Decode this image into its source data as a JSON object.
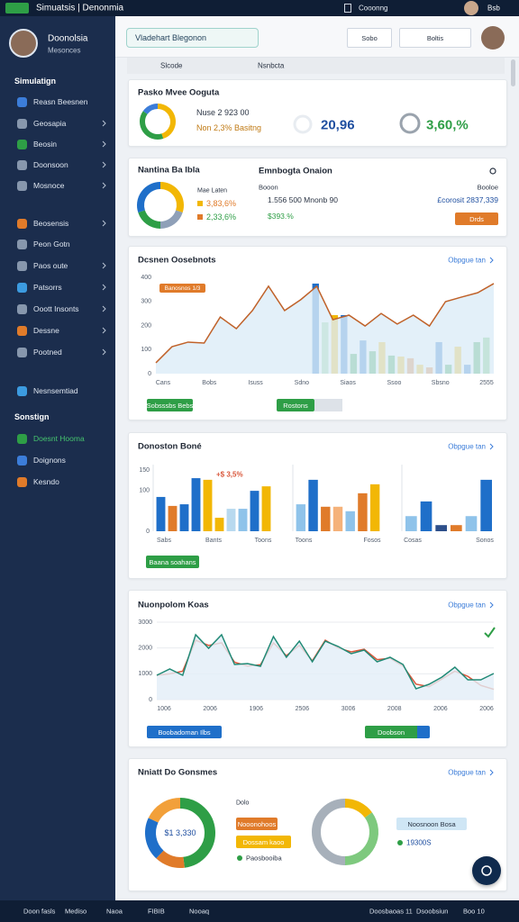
{
  "topbar": {
    "title": "Simuatsis | Denonmia",
    "status": "Cooonng",
    "user": "Bsb"
  },
  "sidebar": {
    "profile": {
      "name": "Doonolsia",
      "role": "Mesonces"
    },
    "section1": "Simulatign",
    "menu1": [
      {
        "label": "Reasn Beesnen",
        "icon_color": "#3c7dd9",
        "arrow": false
      },
      {
        "label": "Geosapia",
        "icon_color": "#8797ad",
        "arrow": true
      },
      {
        "label": "Beosin",
        "icon_color": "#2e9e46",
        "arrow": true
      },
      {
        "label": "Doonsoon",
        "icon_color": "#8797ad",
        "arrow": true
      },
      {
        "label": "Mosnoce",
        "icon_color": "#8797ad",
        "arrow": true
      }
    ],
    "menu2": [
      {
        "label": "Beosensis",
        "icon_color": "#e07b2a",
        "arrow": true
      },
      {
        "label": "Peon Gotn",
        "icon_color": "#8797ad",
        "arrow": false
      },
      {
        "label": "Paos oute",
        "icon_color": "#8797ad",
        "arrow": true
      },
      {
        "label": "Patsorrs",
        "icon_color": "#3c9be0",
        "arrow": true
      },
      {
        "label": "Ooott Insonts",
        "icon_color": "#8797ad",
        "arrow": true
      },
      {
        "label": "Dessne",
        "icon_color": "#e07b2a",
        "arrow": true
      },
      {
        "label": "Pootned",
        "icon_color": "#8797ad",
        "arrow": true
      }
    ],
    "menu3": [
      {
        "label": "Nesnsemtiad",
        "icon_color": "#3c9be0",
        "arrow": false
      }
    ],
    "section2": "Sonstign",
    "menu4": [
      {
        "label": "Doesnt Hooma",
        "icon_color": "#2e9e46",
        "arrow": false,
        "active": true
      },
      {
        "label": "Doignons",
        "icon_color": "#3c7dd9",
        "arrow": false
      },
      {
        "label": "Kesndo",
        "icon_color": "#e07b2a",
        "arrow": false
      }
    ]
  },
  "header": {
    "search": "Vladehart Blegonon",
    "buttons": [
      "Sobo",
      "Boltis"
    ],
    "tabs": [
      "Slcode",
      "Nsnbcta"
    ]
  },
  "kpi": {
    "title": "Pasko Mvee Ooguta",
    "gauge": {
      "type": "donut",
      "values": [
        45,
        40,
        15
      ],
      "colors": [
        "#f2b705",
        "#2e9e46",
        "#3c7dd9"
      ]
    },
    "line1": "Nuse 2 923 00",
    "line2": "Non 2,3% Basitng",
    "metric2": "20,96",
    "metric3": "3,60,%"
  },
  "summary": {
    "title": "Nantina Ba Ibla",
    "donut": {
      "type": "donut",
      "values": [
        30,
        20,
        20,
        30
      ],
      "colors": [
        "#f2b705",
        "#8fa0b8",
        "#2e9e46",
        "#1f6fc9"
      ]
    },
    "legend_title": "Mae Laten",
    "legend": [
      {
        "label": "3,83,6%",
        "color": "#e07b2a"
      },
      {
        "label": "2,33,6%",
        "color": "#2e9e46"
      }
    ],
    "title2": "Emnbogta Onaion",
    "label": "Booon",
    "stat1": "1.556 500 Mnonb 90",
    "stat2": "$393.%",
    "right_label": "Booloe",
    "right_value": "£corosit 2837,339",
    "button": "Drds"
  },
  "trend": {
    "title": "Dcsnen Oosebnots",
    "link": "Obpgue tan",
    "tag": "Banosnos 1/3",
    "chart": {
      "type": "line",
      "ylim": [
        0,
        400
      ],
      "yticks": [
        0,
        100,
        200,
        300,
        400
      ],
      "grid": false,
      "xlabels": [
        "Cans",
        "Bobs",
        "Isuss",
        "Sdno",
        "Siaos",
        "Ssoo",
        "Sbsno",
        "2555"
      ],
      "series": [
        {
          "color": "#c0622a",
          "area_color": "#dcecf7",
          "values": [
            45,
            112,
            131,
            127,
            235,
            187,
            262,
            363,
            262,
            307,
            363,
            224,
            243,
            198,
            250,
            206,
            243,
            198,
            299,
            318,
            336,
            374
          ]
        }
      ],
      "bars": {
        "values": [
          374,
          213,
          243,
          243,
          82,
          138,
          93,
          131,
          75,
          71,
          64,
          37,
          26,
          131,
          37,
          112,
          37,
          131,
          150
        ],
        "colors": [
          "#1f6fc9",
          "#8fd18f",
          "#f2b705",
          "#1f6fc9",
          "#2e9e46",
          "#1f6fc9",
          "#2e9e46",
          "#f2b705",
          "#2e9e46",
          "#f2b705",
          "#e07b2a",
          "#f2b705",
          "#e07b2a",
          "#1f6fc9",
          "#2e9e46",
          "#f2b705",
          "#1f6fc9",
          "#2e9e46",
          "#6cc46c"
        ]
      }
    },
    "buttons": [
      "Sobsssbs Bebs",
      "Rostons"
    ]
  },
  "distribution": {
    "title": "Donoston Boné",
    "link": "Obpgue tan",
    "annotation": "+$ 3,5%",
    "ylim": [
      0,
      150
    ],
    "yticks": [
      0,
      100,
      150
    ],
    "charts": [
      {
        "type": "bar",
        "categories": [
          "Sabs",
          "Bants",
          "Toons"
        ],
        "values": [
          84,
          62,
          66,
          130,
          126,
          33,
          55,
          55,
          99,
          110
        ],
        "colors": [
          "#1f6fc9",
          "#e07b2a",
          "#1f6fc9",
          "#1f6fc9",
          "#f2b705",
          "#f2b705",
          "#b8d9ef",
          "#8fc3ea",
          "#1f6fc9",
          "#f2b705"
        ]
      },
      {
        "type": "bar",
        "categories": [
          "Toons",
          "Fosos"
        ],
        "values": [
          66,
          126,
          60,
          60,
          49,
          93,
          115
        ],
        "colors": [
          "#8fc3ea",
          "#1f6fc9",
          "#e07b2a",
          "#f5b27a",
          "#8fc3ea",
          "#e07b2a",
          "#f2b705"
        ]
      },
      {
        "type": "bar",
        "categories": [
          "Cosas",
          "Sonos"
        ],
        "values": [
          37,
          73,
          15,
          15,
          37,
          126
        ],
        "colors": [
          "#8fc3ea",
          "#1f6fc9",
          "#2d4f8a",
          "#e07b2a",
          "#8fc3ea",
          "#1f6fc9"
        ]
      }
    ],
    "button": "Baana soahans"
  },
  "timeline": {
    "title": "Nuonpolom Koas",
    "link": "Obpgue tan",
    "chart": {
      "type": "line",
      "ylim": [
        0,
        3000
      ],
      "yticks": [
        0,
        1000,
        2000,
        3000
      ],
      "grid": true,
      "xlabels": [
        "1006",
        "2006",
        "1906",
        "2506",
        "3006",
        "2008",
        "2006",
        "2006"
      ],
      "series": [
        {
          "color": "#d9573b",
          "values": [
            942,
            1000,
            1100,
            2300,
            2100,
            2200,
            1450,
            1300,
            1350,
            2200,
            1700,
            2100,
            1500,
            2300,
            2000,
            1850,
            1950,
            1550,
            1600,
            1300,
            600,
            500,
            800,
            1100,
            900,
            550,
            400
          ]
        },
        {
          "color": "#218a76",
          "area_color": "#e2eef8",
          "values": [
            942,
            1186,
            942,
            2512,
            1988,
            2512,
            1360,
            1395,
            1291,
            2442,
            1640,
            2267,
            1465,
            2267,
            2058,
            1779,
            1919,
            1465,
            1640,
            1360,
            419,
            593,
            872,
            1256,
            767,
            767,
            1012
          ]
        }
      ]
    },
    "buttons": [
      "Boobadoman Ilbs",
      "Doobson"
    ]
  },
  "breakdown": {
    "title": "Nniatt Do Gonsmes",
    "link": "Obpgue tan",
    "donut1": {
      "type": "donut",
      "values": [
        48,
        14,
        20,
        18
      ],
      "colors": [
        "#2e9e46",
        "#e07b2a",
        "#1f6fc9",
        "#f2a03a"
      ],
      "center": "$1 3,330"
    },
    "legend_title": "Dolo",
    "legend1": [
      {
        "label": "Nooonohoos",
        "color": "#e07b2a"
      },
      {
        "label": "Dossam kaoo",
        "color": "#f2b705"
      },
      {
        "label": "Paosbooiba",
        "color": "#2e9e46"
      }
    ],
    "donut2": {
      "type": "donut",
      "values": [
        15,
        35,
        50
      ],
      "colors": [
        "#f2b705",
        "#7ec97e",
        "#a7b0ba"
      ]
    },
    "legend2": [
      {
        "label": "Noosnoon Bosa",
        "color": "#cfe6f5"
      },
      {
        "label": "19300S",
        "color": "#2e9e46"
      }
    ]
  },
  "footer": {
    "left": [
      "Doon fasls",
      "Mediso",
      "Naoa",
      "FIBIB",
      "Nooaq"
    ],
    "right": [
      "Doosbaoas 11",
      "Dsoobsiun",
      "Boo 10"
    ]
  }
}
